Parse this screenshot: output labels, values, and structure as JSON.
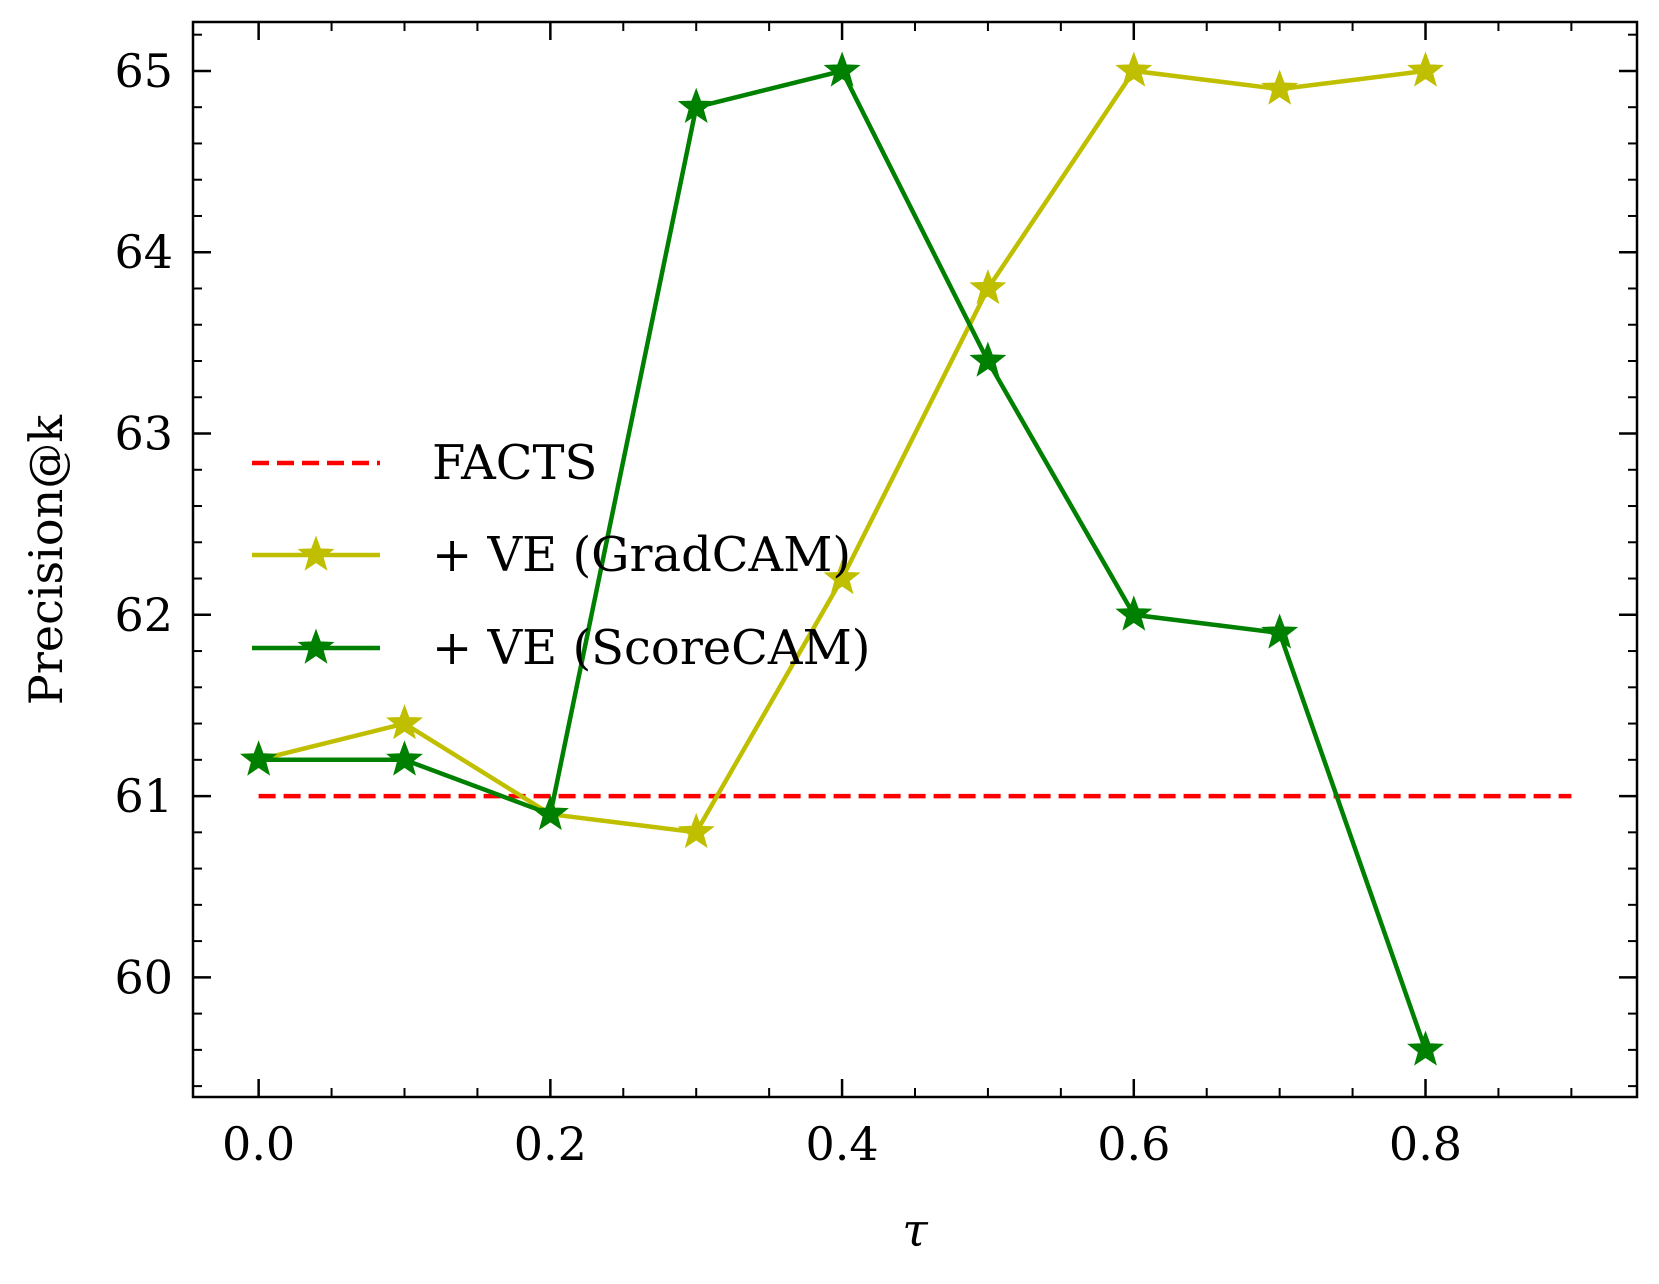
{
  "chart_data": {
    "type": "line",
    "title": "",
    "xlabel": "τ",
    "ylabel": "Precision@k",
    "xlim": [
      -0.045,
      0.945
    ],
    "ylim": [
      59.34,
      65.27
    ],
    "x_ticks": [
      0.0,
      0.2,
      0.4,
      0.6,
      0.8
    ],
    "x_tick_labels": [
      "0.0",
      "0.2",
      "0.4",
      "0.6",
      "0.8"
    ],
    "y_ticks": [
      60,
      61,
      62,
      63,
      64,
      65
    ],
    "y_tick_labels": [
      "60",
      "61",
      "62",
      "63",
      "64",
      "65"
    ],
    "legend_position": "center-left",
    "series": [
      {
        "name": "FACTS",
        "color": "#ff0000",
        "style": "dashed",
        "marker": "none",
        "x": [
          0.0,
          0.9
        ],
        "values": [
          61.0,
          61.0
        ]
      },
      {
        "name": "+ VE (GradCAM)",
        "color": "#bfbf00",
        "style": "solid",
        "marker": "star",
        "x": [
          0.0,
          0.1,
          0.2,
          0.3,
          0.4,
          0.5,
          0.6,
          0.7,
          0.8
        ],
        "values": [
          61.2,
          61.4,
          60.9,
          60.8,
          62.2,
          63.8,
          65.0,
          64.9,
          65.0
        ]
      },
      {
        "name": "+ VE (ScoreCAM)",
        "color": "#008000",
        "style": "solid",
        "marker": "star",
        "x": [
          0.0,
          0.1,
          0.2,
          0.3,
          0.4,
          0.5,
          0.6,
          0.7,
          0.8
        ],
        "values": [
          61.2,
          61.2,
          60.9,
          64.8,
          65.0,
          63.4,
          62.0,
          61.9,
          59.6
        ]
      }
    ]
  }
}
